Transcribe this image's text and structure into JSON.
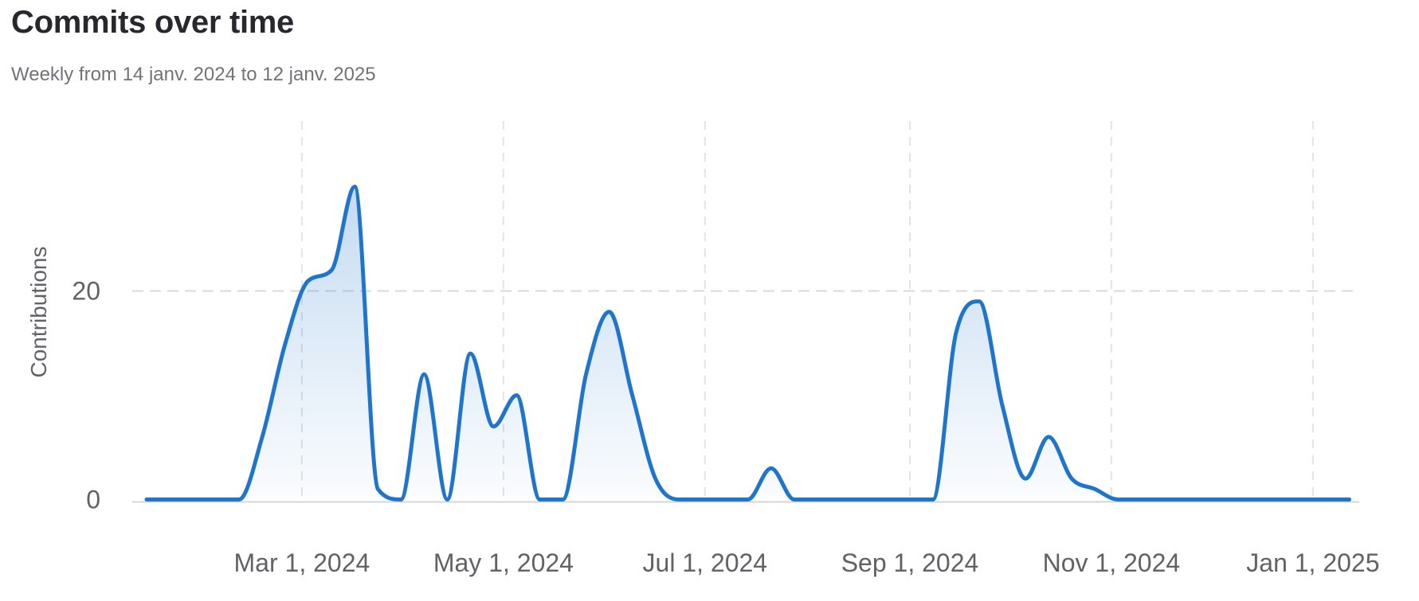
{
  "chart": {
    "title": "Commits over time",
    "subtitle": "Weekly from 14 janv. 2024 to 12 janv. 2025"
  },
  "chart_data": {
    "type": "area",
    "title": "Commits over time",
    "subtitle": "Weekly from 14 janv. 2024 to 12 janv. 2025",
    "xlabel": "",
    "ylabel": "Contributions",
    "series_name": "Commits",
    "smooth": true,
    "grid": "dashed",
    "legend": "none",
    "line_color": "#1f75cb",
    "area_fill_top": "rgba(31,117,203,0.26)",
    "area_fill_bottom": "rgba(31,117,203,0.02)",
    "ylim": [
      0,
      36
    ],
    "y_ticks": [
      {
        "value": 0,
        "label": "0"
      },
      {
        "value": 20,
        "label": "20"
      }
    ],
    "x_ticks": [
      {
        "date": "2024-03-01",
        "label": "Mar 1, 2024"
      },
      {
        "date": "2024-05-01",
        "label": "May 1, 2024"
      },
      {
        "date": "2024-07-01",
        "label": "Jul 1, 2024"
      },
      {
        "date": "2024-09-01",
        "label": "Sep 1, 2024"
      },
      {
        "date": "2024-11-01",
        "label": "Nov 1, 2024"
      },
      {
        "date": "2025-01-01",
        "label": "Jan 1, 2025"
      }
    ],
    "x": [
      "2024-01-14",
      "2024-01-21",
      "2024-01-28",
      "2024-02-04",
      "2024-02-11",
      "2024-02-18",
      "2024-02-25",
      "2024-03-03",
      "2024-03-10",
      "2024-03-17",
      "2024-03-24",
      "2024-03-31",
      "2024-04-07",
      "2024-04-14",
      "2024-04-21",
      "2024-04-28",
      "2024-05-05",
      "2024-05-12",
      "2024-05-19",
      "2024-05-26",
      "2024-06-02",
      "2024-06-09",
      "2024-06-16",
      "2024-06-23",
      "2024-06-30",
      "2024-07-07",
      "2024-07-14",
      "2024-07-21",
      "2024-07-28",
      "2024-08-04",
      "2024-08-11",
      "2024-08-18",
      "2024-08-25",
      "2024-09-01",
      "2024-09-08",
      "2024-09-15",
      "2024-09-22",
      "2024-09-29",
      "2024-10-06",
      "2024-10-13",
      "2024-10-20",
      "2024-10-27",
      "2024-11-03",
      "2024-11-10",
      "2024-11-17",
      "2024-11-24",
      "2024-12-01",
      "2024-12-08",
      "2024-12-15",
      "2024-12-22",
      "2024-12-29",
      "2025-01-05",
      "2025-01-12"
    ],
    "values": [
      0,
      0,
      0,
      0,
      0,
      6,
      15,
      21,
      22,
      30,
      1,
      0,
      12,
      0,
      14,
      7,
      10,
      0,
      0,
      12,
      18,
      10,
      2,
      0,
      0,
      0,
      0,
      3,
      0,
      0,
      0,
      0,
      0,
      0,
      0,
      16,
      19,
      9,
      2,
      6,
      2,
      1,
      0,
      0,
      0,
      0,
      0,
      0,
      0,
      0,
      0,
      0,
      0
    ]
  }
}
